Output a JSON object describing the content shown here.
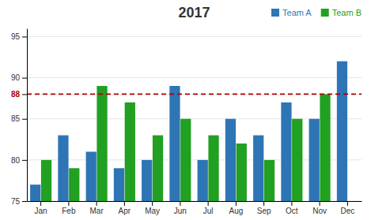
{
  "chart_data": {
    "type": "bar",
    "title": "2017",
    "categories": [
      "Jan",
      "Feb",
      "Mar",
      "Apr",
      "May",
      "Jun",
      "Jul",
      "Aug",
      "Sep",
      "Oct",
      "Nov",
      "Dec"
    ],
    "series": [
      {
        "name": "Team A",
        "color": "#2E75B6",
        "values": [
          77,
          83,
          81,
          79,
          80,
          89,
          80,
          85,
          83,
          87,
          85,
          92
        ]
      },
      {
        "name": "Team B",
        "color": "#21A021",
        "values": [
          80,
          79,
          89,
          87,
          83,
          85,
          83,
          82,
          80,
          85,
          88,
          null
        ]
      }
    ],
    "annotations": [
      {
        "type": "hline",
        "y": 88,
        "color": "#AA0000",
        "line_style": "dashed"
      }
    ],
    "ylim": [
      75,
      96
    ],
    "yticks": [
      75,
      80,
      85,
      88,
      90,
      95
    ],
    "grid": true,
    "legend": "upper right"
  }
}
